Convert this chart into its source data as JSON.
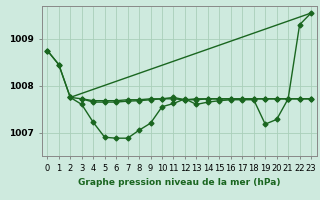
{
  "bg_color": "#ceeade",
  "grid_color": "#aacfba",
  "line_color": "#1a6620",
  "xlabel": "Graphe pression niveau de la mer (hPa)",
  "x_ticks": [
    0,
    1,
    2,
    3,
    4,
    5,
    6,
    7,
    8,
    9,
    10,
    11,
    12,
    13,
    14,
    15,
    16,
    17,
    18,
    19,
    20,
    21,
    22,
    23
  ],
  "y_ticks": [
    1007,
    1008,
    1009
  ],
  "ylim": [
    1006.5,
    1009.7
  ],
  "xlim": [
    -0.5,
    23.5
  ],
  "series": [
    {
      "x": [
        0,
        1,
        2
      ],
      "y": [
        1008.75,
        1008.45,
        1007.75
      ],
      "marker": "D",
      "ms": 2.5,
      "lw": 1.0
    },
    {
      "x": [
        0,
        1,
        2,
        3,
        4,
        5,
        6,
        7,
        8,
        9,
        10,
        11,
        12,
        13,
        14,
        15,
        16,
        17,
        18,
        19,
        20,
        21,
        22,
        23
      ],
      "y": [
        1008.75,
        1008.45,
        1007.75,
        1007.6,
        1007.22,
        1006.9,
        1006.88,
        1006.88,
        1007.05,
        1007.2,
        1007.55,
        1007.62,
        1007.72,
        1007.6,
        1007.65,
        1007.68,
        1007.7,
        1007.7,
        1007.7,
        1007.18,
        1007.28,
        1007.72,
        1009.3,
        1009.55
      ],
      "marker": "D",
      "ms": 2.5,
      "lw": 1.0
    },
    {
      "x": [
        2,
        23
      ],
      "y": [
        1007.75,
        1009.55
      ],
      "marker": null,
      "ms": 0,
      "lw": 1.0
    },
    {
      "x": [
        2,
        3,
        4,
        5,
        6,
        7,
        8,
        9,
        10,
        11,
        12,
        13,
        14,
        15,
        16,
        17,
        18,
        19,
        20,
        21,
        22,
        23
      ],
      "y": [
        1007.75,
        1007.72,
        1007.68,
        1007.68,
        1007.68,
        1007.7,
        1007.7,
        1007.72,
        1007.72,
        1007.75,
        1007.7,
        1007.72,
        1007.72,
        1007.72,
        1007.72,
        1007.72,
        1007.72,
        1007.72,
        1007.72,
        1007.72,
        1007.72,
        1007.72
      ],
      "marker": "D",
      "ms": 2.5,
      "lw": 1.0
    },
    {
      "x": [
        3,
        4,
        5,
        6,
        7,
        8,
        9,
        10,
        11,
        12,
        13,
        14,
        15,
        16,
        17,
        18,
        19,
        20,
        21,
        22,
        23
      ],
      "y": [
        1007.72,
        1007.65,
        1007.65,
        1007.65,
        1007.67,
        1007.68,
        1007.7,
        1007.72,
        1007.72,
        1007.7,
        1007.7,
        1007.72,
        1007.72,
        1007.72,
        1007.72,
        1007.72,
        1007.72,
        1007.72,
        1007.72,
        1007.72,
        1007.72
      ],
      "marker": "D",
      "ms": 2.5,
      "lw": 1.0
    }
  ],
  "tick_fontsize": 6,
  "xlabel_fontsize": 6.5,
  "figsize": [
    3.2,
    2.0
  ],
  "dpi": 100
}
